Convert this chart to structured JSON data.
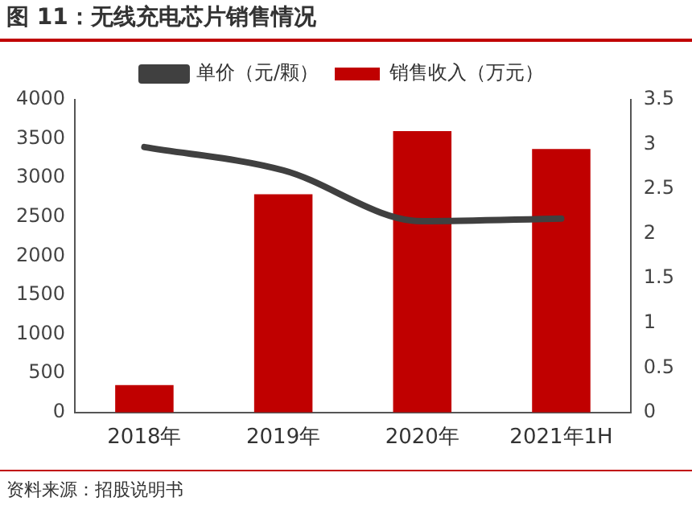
{
  "chart_data": {
    "type": "bar",
    "title": "图 11：无线充电芯片销售情况",
    "categories": [
      "2018年",
      "2019年",
      "2020年",
      "2021年1H"
    ],
    "series": [
      {
        "name": "销售收入（万元）",
        "color": "#c00000",
        "values": [
          350,
          2790,
          3600,
          3370
        ]
      },
      {
        "name": "单价（元/颗）",
        "type": "line",
        "axis": "y2",
        "color": "#404040",
        "values": [
          2.97,
          2.71,
          2.14,
          2.17
        ]
      }
    ],
    "ylim": [
      0,
      4000
    ],
    "yticks": [
      0,
      500,
      1000,
      1500,
      2000,
      2500,
      3000,
      3500,
      4000
    ],
    "y2lim": [
      0,
      3.5
    ],
    "y2ticks": [
      0,
      0.5,
      1,
      1.5,
      2,
      2.5,
      3,
      3.5
    ],
    "legend": "top",
    "grid": false,
    "marker": "none",
    "annotations": [
      "资料来源：招股说明书"
    ]
  }
}
